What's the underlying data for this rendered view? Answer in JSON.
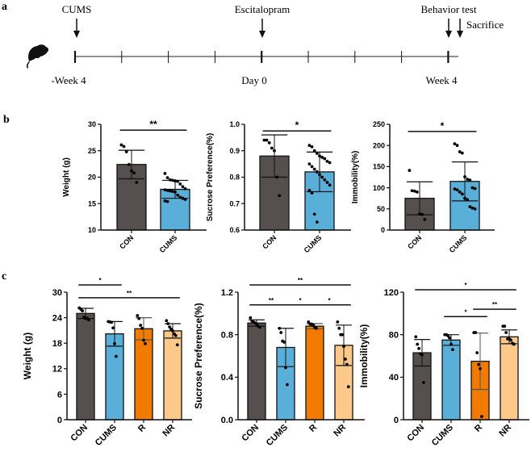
{
  "panel_labels": [
    "a",
    "b",
    "c"
  ],
  "timeline": {
    "events": [
      "CUMS",
      "Escitalopram",
      "Behavior test",
      "Sacrifice"
    ],
    "time_labels": [
      "-Week 4",
      "Day 0",
      "Week 4"
    ],
    "icon": "mouse-icon"
  },
  "colors": {
    "CON": "#55504d",
    "CUMS": "#5aafd9",
    "R": "#f07b00",
    "NR": "#fdc98a"
  },
  "chart_data": [
    {
      "type": "bar",
      "id": "b1",
      "ylabel": "Weight (g)",
      "categories": [
        "CON",
        "CUMS"
      ],
      "ylim": [
        10,
        30
      ],
      "yticks": [
        10,
        15,
        20,
        25,
        30
      ],
      "values": [
        22.4,
        17.7
      ],
      "err": [
        2.7,
        1.7
      ],
      "points": [
        [
          26.1,
          25.8,
          24.8,
          22.4,
          21.2,
          20.8,
          19.0
        ],
        [
          20.7,
          19.9,
          19.5,
          19.4,
          19.3,
          19.2,
          18.7,
          18.2,
          17.8,
          17.6,
          17.5,
          17.4,
          17.3,
          17.2,
          16.6,
          16.2,
          16.0,
          15.8,
          15.5,
          15.4
        ]
      ],
      "sig": [
        {
          "from": 0,
          "to": 1,
          "y": 28.9,
          "label": "**"
        }
      ]
    },
    {
      "type": "bar",
      "id": "b2",
      "ylabel": "Sucrose Preference(%)",
      "categories": [
        "CON",
        "CUMS"
      ],
      "ylim": [
        0.6,
        1.0
      ],
      "yticks": [
        "0.6",
        "0.7",
        "0.8",
        "0.9",
        "1.0"
      ],
      "values": [
        0.88,
        0.82
      ],
      "err": [
        0.08,
        0.075
      ],
      "points": [
        [
          0.94,
          0.94,
          0.93,
          0.91,
          0.9,
          0.8,
          0.73
        ],
        [
          0.92,
          0.915,
          0.9,
          0.89,
          0.88,
          0.875,
          0.87,
          0.86,
          0.855,
          0.85,
          0.84,
          0.83,
          0.82,
          0.81,
          0.8,
          0.79,
          0.78,
          0.77,
          0.75,
          0.74,
          0.66,
          0.63
        ]
      ],
      "sig": [
        {
          "from": 0,
          "to": 1,
          "y": 0.975,
          "label": "*"
        }
      ]
    },
    {
      "type": "bar",
      "id": "b3",
      "ylabel": "Immobility(%)",
      "categories": [
        "CON",
        "CUMS"
      ],
      "ylim": [
        0,
        250
      ],
      "yticks": [
        0,
        50,
        100,
        150,
        200,
        250
      ],
      "values": [
        75,
        115
      ],
      "err": [
        39,
        46
      ],
      "points": [
        [
          141,
          93,
          92,
          90,
          38,
          37,
          25
        ],
        [
          204,
          200,
          185,
          182,
          126,
          120,
          118,
          100,
          98,
          97,
          95,
          90,
          85,
          75,
          72,
          55,
          52,
          50
        ]
      ],
      "sig": [
        {
          "from": 0,
          "to": 1,
          "y": 233,
          "label": "*"
        }
      ]
    },
    {
      "type": "bar",
      "id": "c1",
      "ylabel": "Weight (g)",
      "categories": [
        "CON",
        "CUMS",
        "R",
        "NR"
      ],
      "ylim": [
        0,
        30
      ],
      "yticks": [
        0,
        6,
        12,
        18,
        24,
        30
      ],
      "values": [
        25.0,
        20.2,
        21.4,
        20.9
      ],
      "err": [
        1.2,
        2.9,
        2.6,
        1.7
      ],
      "points": [
        [
          26.3,
          26.0,
          25.6,
          24.1,
          23.8,
          23.9,
          23.5
        ],
        [
          23.1,
          23.0,
          22.9,
          21.6,
          17.9,
          14.9
        ],
        [
          24.5,
          23.8,
          22.2,
          21.5,
          18.7,
          17.9
        ],
        [
          23.3,
          22.6,
          21.8,
          21.3,
          20.9,
          20.2,
          19.8,
          17.6
        ]
      ],
      "sig": [
        {
          "from": 0,
          "to": 1,
          "y": 31.7,
          "label": "*"
        },
        {
          "from": 0,
          "to": 3,
          "y": 28.7,
          "label": "**"
        }
      ]
    },
    {
      "type": "bar",
      "id": "c2",
      "ylabel": "Sucrose Preference(%)",
      "categories": [
        "CON",
        "CUMS",
        "R",
        "NR"
      ],
      "ylim": [
        0,
        1.2
      ],
      "yticks": [
        "0.0",
        "0.4",
        "0.8",
        "1.2"
      ],
      "values": [
        0.91,
        0.68,
        0.88,
        0.7
      ],
      "err": [
        0.03,
        0.18,
        0.025,
        0.19
      ],
      "points": [
        [
          0.96,
          0.93,
          0.92,
          0.91,
          0.9,
          0.88,
          0.87
        ],
        [
          0.86,
          0.82,
          0.74,
          0.73,
          0.49,
          0.33
        ],
        [
          0.92,
          0.9,
          0.9,
          0.89,
          0.87,
          0.86
        ],
        [
          0.92,
          0.86,
          0.8,
          0.8,
          0.69,
          0.57,
          0.52,
          0.31
        ]
      ],
      "sig": [
        {
          "from": 0,
          "to": 3,
          "y": 1.268,
          "label": "**"
        },
        {
          "from": 0,
          "to": 1,
          "y": 1.08,
          "label": "**"
        },
        {
          "from": 1,
          "to": 2,
          "y": 1.08,
          "label": "*"
        },
        {
          "from": 2,
          "to": 3,
          "y": 1.08,
          "label": "*"
        }
      ]
    },
    {
      "type": "bar",
      "id": "c3",
      "ylabel": "Immobility(%)",
      "categories": [
        "CON",
        "CUMS",
        "R",
        "NR"
      ],
      "ylim": [
        0,
        120
      ],
      "yticks": [
        0,
        40,
        80,
        120
      ],
      "values": [
        63,
        75,
        55,
        78
      ],
      "err": [
        12.5,
        5,
        26.5,
        6.5
      ],
      "points": [
        [
          78,
          71,
          67,
          62,
          61,
          35
        ],
        [
          80,
          80,
          79,
          77,
          71,
          66
        ],
        [
          82,
          82,
          63,
          52,
          48,
          3
        ],
        [
          88,
          88,
          82,
          76,
          76,
          75,
          72,
          71
        ]
      ],
      "sig": [
        {
          "from": 0,
          "to": 3,
          "y": 122.3,
          "label": "*"
        },
        {
          "from": 2,
          "to": 3,
          "y": 104,
          "label": "**"
        },
        {
          "from": 1,
          "to": 2,
          "y": 97,
          "label": "*"
        }
      ]
    }
  ]
}
